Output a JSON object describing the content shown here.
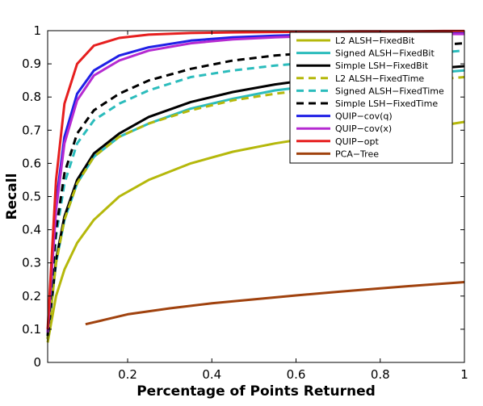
{
  "chart_data": {
    "type": "line",
    "title": "",
    "xlabel": "Percentage of Points Returned",
    "ylabel": "Recall",
    "xlim": [
      0.01,
      1
    ],
    "ylim": [
      0,
      1
    ],
    "xticks": [
      0.2,
      0.4,
      0.6,
      0.8,
      1
    ],
    "xtick_labels": [
      "0.2",
      "0.4",
      "0.6",
      "0.8",
      "1"
    ],
    "yticks": [
      0,
      0.1,
      0.2,
      0.3,
      0.4,
      0.5,
      0.6,
      0.7,
      0.8,
      0.9,
      1
    ],
    "ytick_labels": [
      "0",
      "0.1",
      "0.2",
      "0.3",
      "0.4",
      "0.5",
      "0.6",
      "0.7",
      "0.8",
      "0.9",
      "1"
    ],
    "grid": false,
    "legend_position": "top-right",
    "series": [
      {
        "name": "L2 ALSH−FixedBit",
        "color": "#b5b80b",
        "dash": "solid",
        "x": [
          0.01,
          0.03,
          0.05,
          0.08,
          0.12,
          0.18,
          0.25,
          0.35,
          0.45,
          0.55,
          0.65,
          0.75,
          0.85,
          0.95,
          1.0
        ],
        "y": [
          0.06,
          0.2,
          0.28,
          0.36,
          0.43,
          0.5,
          0.55,
          0.6,
          0.635,
          0.66,
          0.68,
          0.695,
          0.705,
          0.715,
          0.725
        ]
      },
      {
        "name": "Signed ALSH−FixedBit",
        "color": "#2bbcbc",
        "dash": "solid",
        "x": [
          0.01,
          0.03,
          0.05,
          0.08,
          0.12,
          0.18,
          0.25,
          0.35,
          0.45,
          0.55,
          0.65,
          0.75,
          0.85,
          0.95,
          1.0
        ],
        "y": [
          0.07,
          0.3,
          0.43,
          0.54,
          0.62,
          0.68,
          0.72,
          0.765,
          0.795,
          0.82,
          0.835,
          0.85,
          0.865,
          0.875,
          0.88
        ]
      },
      {
        "name": "Simple LSH−FixedBit",
        "color": "#000000",
        "dash": "solid",
        "x": [
          0.01,
          0.03,
          0.05,
          0.08,
          0.12,
          0.18,
          0.25,
          0.35,
          0.45,
          0.55,
          0.65,
          0.75,
          0.85,
          0.95,
          1.0
        ],
        "y": [
          0.07,
          0.31,
          0.44,
          0.55,
          0.63,
          0.69,
          0.74,
          0.785,
          0.815,
          0.838,
          0.855,
          0.868,
          0.878,
          0.888,
          0.893
        ]
      },
      {
        "name": "L2 ALSH−FixedTime",
        "color": "#b5b80b",
        "dash": "dashed",
        "x": [
          0.01,
          0.03,
          0.05,
          0.08,
          0.12,
          0.18,
          0.25,
          0.35,
          0.45,
          0.55,
          0.65,
          0.75,
          0.85,
          0.95,
          1.0
        ],
        "y": [
          0.07,
          0.3,
          0.43,
          0.54,
          0.62,
          0.68,
          0.72,
          0.76,
          0.79,
          0.81,
          0.825,
          0.835,
          0.845,
          0.855,
          0.86
        ]
      },
      {
        "name": "Signed ALSH−FixedTime",
        "color": "#2bbcbc",
        "dash": "dashed",
        "x": [
          0.01,
          0.03,
          0.05,
          0.08,
          0.12,
          0.18,
          0.25,
          0.35,
          0.45,
          0.55,
          0.65,
          0.75,
          0.85,
          0.95,
          1.0
        ],
        "y": [
          0.08,
          0.38,
          0.54,
          0.66,
          0.73,
          0.78,
          0.82,
          0.86,
          0.88,
          0.895,
          0.905,
          0.915,
          0.925,
          0.935,
          0.94
        ]
      },
      {
        "name": "Simple LSH−FixedTime",
        "color": "#000000",
        "dash": "dashed",
        "x": [
          0.01,
          0.03,
          0.05,
          0.08,
          0.12,
          0.18,
          0.25,
          0.35,
          0.45,
          0.55,
          0.65,
          0.75,
          0.85,
          0.95,
          1.0
        ],
        "y": [
          0.08,
          0.4,
          0.57,
          0.69,
          0.76,
          0.81,
          0.85,
          0.885,
          0.91,
          0.925,
          0.935,
          0.945,
          0.952,
          0.958,
          0.962
        ]
      },
      {
        "name": "QUIP−cov(q)",
        "color": "#1f1fe6",
        "dash": "solid",
        "x": [
          0.01,
          0.03,
          0.05,
          0.08,
          0.12,
          0.18,
          0.25,
          0.35,
          0.45,
          0.55,
          0.65,
          0.75,
          0.85,
          0.95,
          1.0
        ],
        "y": [
          0.09,
          0.48,
          0.68,
          0.81,
          0.88,
          0.925,
          0.95,
          0.97,
          0.98,
          0.985,
          0.988,
          0.99,
          0.991,
          0.992,
          0.992
        ]
      },
      {
        "name": "QUIP−cov(x)",
        "color": "#b52ad1",
        "dash": "solid",
        "x": [
          0.01,
          0.03,
          0.05,
          0.08,
          0.12,
          0.18,
          0.25,
          0.35,
          0.45,
          0.55,
          0.65,
          0.75,
          0.85,
          0.95,
          1.0
        ],
        "y": [
          0.09,
          0.46,
          0.66,
          0.79,
          0.865,
          0.91,
          0.94,
          0.962,
          0.974,
          0.98,
          0.984,
          0.987,
          0.989,
          0.99,
          0.99
        ]
      },
      {
        "name": "QUIP−opt",
        "color": "#e61f1f",
        "dash": "solid",
        "x": [
          0.01,
          0.03,
          0.05,
          0.08,
          0.12,
          0.18,
          0.25,
          0.35,
          0.45,
          0.55,
          0.65,
          0.75,
          0.85,
          0.95,
          1.0
        ],
        "y": [
          0.1,
          0.55,
          0.78,
          0.9,
          0.955,
          0.978,
          0.988,
          0.993,
          0.995,
          0.996,
          0.997,
          0.998,
          0.998,
          0.999,
          0.999
        ]
      },
      {
        "name": "PCA−Tree",
        "color": "#a0420e",
        "dash": "solid",
        "x": [
          0.1,
          0.15,
          0.2,
          0.3,
          0.4,
          0.5,
          0.6,
          0.7,
          0.8,
          0.9,
          1.0
        ],
        "y": [
          0.115,
          0.13,
          0.145,
          0.163,
          0.178,
          0.19,
          0.202,
          0.213,
          0.223,
          0.233,
          0.242
        ]
      }
    ]
  }
}
